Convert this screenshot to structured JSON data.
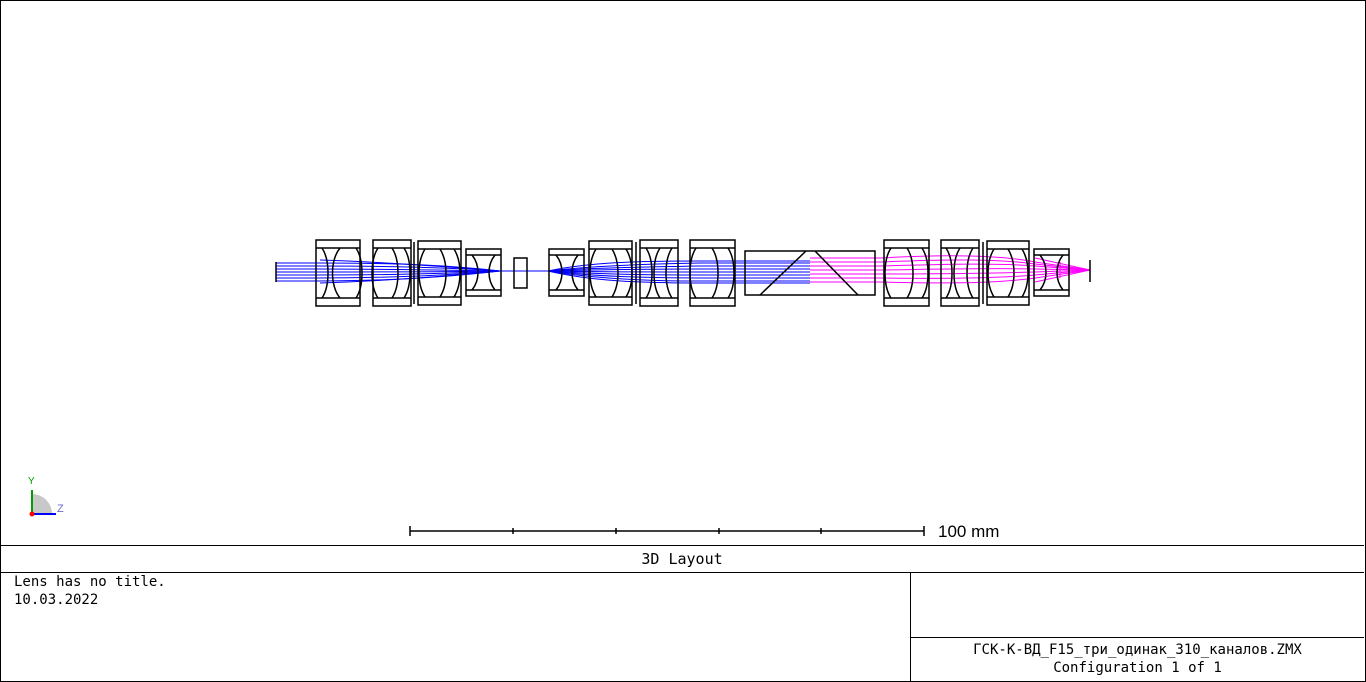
{
  "plot": {
    "title": "3D Layout",
    "scale_label": "100 mm",
    "axis_y_label": "Y",
    "axis_z_label": "Z"
  },
  "info": {
    "lens_title": "Lens has no title.",
    "date": "10.03.2022",
    "file_name": "ГСК-К-ВД_F15_три_одинак_310_каналов.ZMX",
    "configuration": "Configuration 1 of 1"
  },
  "colors": {
    "ray_blue": "#0000ff",
    "ray_magenta": "#ff00ff",
    "lens_outline": "#000000"
  }
}
